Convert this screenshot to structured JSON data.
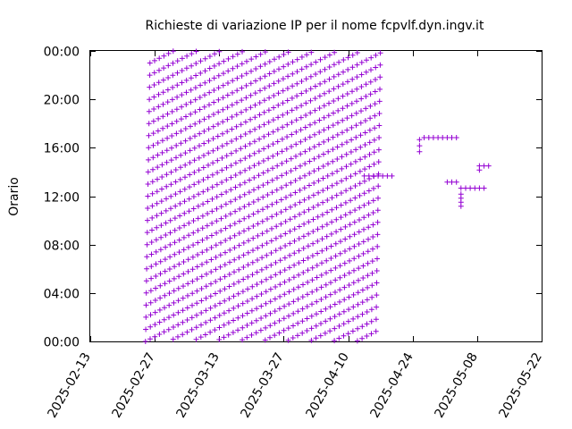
{
  "chart_data": {
    "type": "scatter",
    "title": "Richieste di variazione IP per il nome fcpvlf.dyn.ingv.it",
    "xlabel": "",
    "ylabel": "Orario",
    "marker": "+",
    "color": "#9400d3",
    "grid": false,
    "x_ticks": [
      "2025-02-13",
      "2025-02-27",
      "2025-03-13",
      "2025-03-27",
      "2025-04-10",
      "2025-04-24",
      "2025-05-08",
      "2025-05-22"
    ],
    "y_ticks": [
      "00:00",
      "04:00",
      "08:00",
      "12:00",
      "16:00",
      "20:00",
      "00:00"
    ],
    "xlim": [
      "2025-02-13",
      "2025-05-22"
    ],
    "ylim_hours": [
      0,
      24
    ],
    "dense_period": {
      "start": "2025-02-25",
      "end": "2025-04-16",
      "points_per_day": 24,
      "interval_minutes": 60,
      "daily_drift_minutes": 11.8,
      "description_of_values": "hourly requests, each day's phase shifting later"
    },
    "points": [
      {
        "x": "2025-04-13",
        "y": "13:40"
      },
      {
        "x": "2025-04-14",
        "y": "13:40"
      },
      {
        "x": "2025-04-15",
        "y": "13:40"
      },
      {
        "x": "2025-04-16",
        "y": "13:40"
      },
      {
        "x": "2025-04-17",
        "y": "13:40"
      },
      {
        "x": "2025-04-18",
        "y": "13:40"
      },
      {
        "x": "2025-04-19",
        "y": "13:40"
      },
      {
        "x": "2025-04-25",
        "y": "15:40"
      },
      {
        "x": "2025-04-25",
        "y": "16:10"
      },
      {
        "x": "2025-04-25",
        "y": "16:40"
      },
      {
        "x": "2025-04-26",
        "y": "16:50"
      },
      {
        "x": "2025-04-27",
        "y": "16:50"
      },
      {
        "x": "2025-04-28",
        "y": "16:50"
      },
      {
        "x": "2025-04-29",
        "y": "16:50"
      },
      {
        "x": "2025-04-30",
        "y": "16:50"
      },
      {
        "x": "2025-05-01",
        "y": "16:50"
      },
      {
        "x": "2025-05-02",
        "y": "16:50"
      },
      {
        "x": "2025-05-03",
        "y": "16:50"
      },
      {
        "x": "2025-05-01",
        "y": "13:10"
      },
      {
        "x": "2025-05-02",
        "y": "13:10"
      },
      {
        "x": "2025-05-03",
        "y": "13:10"
      },
      {
        "x": "2025-05-04",
        "y": "11:10"
      },
      {
        "x": "2025-05-04",
        "y": "11:30"
      },
      {
        "x": "2025-05-04",
        "y": "11:50"
      },
      {
        "x": "2025-05-04",
        "y": "12:10"
      },
      {
        "x": "2025-05-04",
        "y": "12:40"
      },
      {
        "x": "2025-05-05",
        "y": "12:40"
      },
      {
        "x": "2025-05-06",
        "y": "12:40"
      },
      {
        "x": "2025-05-07",
        "y": "12:40"
      },
      {
        "x": "2025-05-08",
        "y": "12:40"
      },
      {
        "x": "2025-05-09",
        "y": "12:40"
      },
      {
        "x": "2025-05-08",
        "y": "14:10"
      },
      {
        "x": "2025-05-08",
        "y": "14:30"
      },
      {
        "x": "2025-05-09",
        "y": "14:30"
      },
      {
        "x": "2025-05-10",
        "y": "14:30"
      }
    ]
  }
}
